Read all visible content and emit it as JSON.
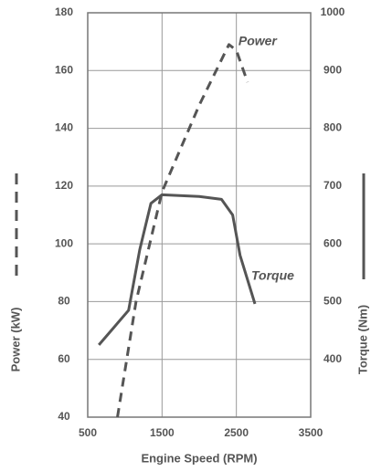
{
  "chart_data": {
    "type": "line",
    "xlabel": "Engine Speed  (RPM)",
    "ylabel": "Power (kW)",
    "y2label": "Torque (Nm)",
    "xlim": [
      500,
      3500
    ],
    "xticks": [
      500,
      1500,
      2500,
      3500
    ],
    "ylim": [
      40,
      180
    ],
    "yticks": [
      40,
      60,
      80,
      100,
      120,
      140,
      160,
      180
    ],
    "y2lim": [
      300,
      1000
    ],
    "y2ticks": [
      400,
      500,
      600,
      700,
      800,
      900,
      1000
    ],
    "grid": true,
    "series": [
      {
        "name": "Power",
        "color": "#555555",
        "dashed": true,
        "x": [
          900,
          1150,
          1500,
          2000,
          2400,
          2500,
          2650
        ],
        "values": [
          40,
          80,
          118,
          148,
          169,
          167,
          156
        ]
      },
      {
        "name": "Torque",
        "color": "#555555",
        "dashed": false,
        "axis": "y2",
        "x": [
          650,
          1050,
          1200,
          1350,
          1500,
          2000,
          2300,
          2450,
          2550,
          2750
        ],
        "values": [
          425,
          485,
          590,
          670,
          685,
          682,
          677,
          650,
          580,
          496
        ]
      }
    ]
  }
}
